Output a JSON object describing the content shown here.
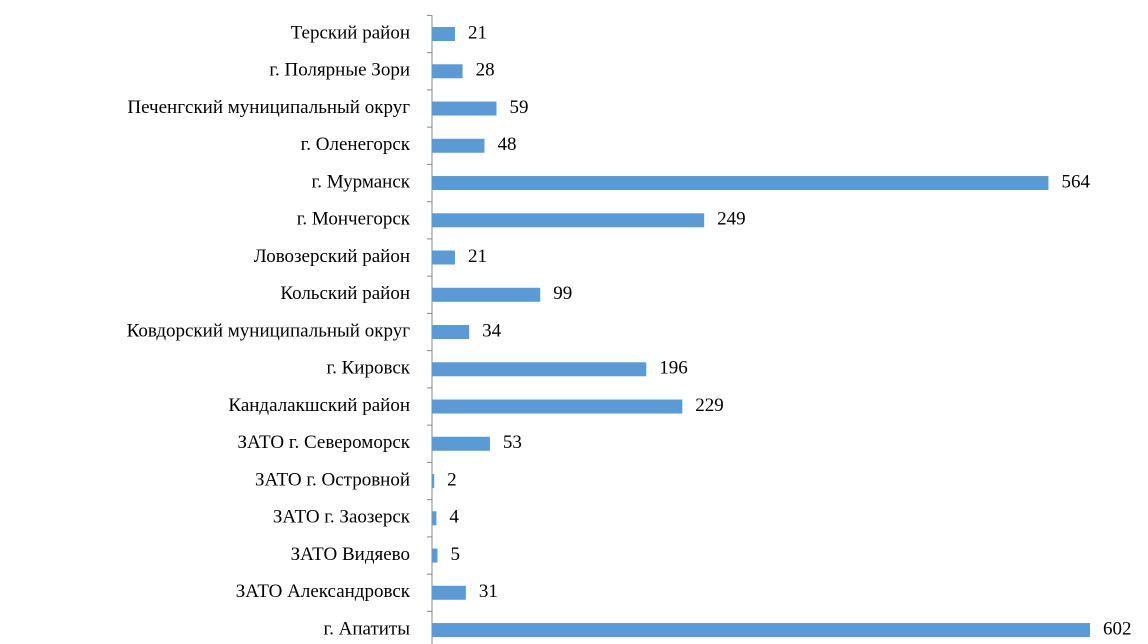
{
  "chart_data": {
    "type": "bar",
    "orientation": "horizontal",
    "categories": [
      "Терский район",
      "г. Полярные Зори",
      "Печенгский муниципальный округ",
      "г. Оленегорск",
      "г. Мурманск",
      "г. Мончегорск",
      "Ловозерский район",
      "Кольский район",
      "Ковдорский муниципальный округ",
      "г. Кировск",
      "Кандалакшский район",
      "ЗАТО г. Североморск",
      "ЗАТО г. Островной",
      "ЗАТО г. Заозерск",
      "ЗАТО Видяево",
      "ЗАТО Александровск",
      "г. Апатиты"
    ],
    "values": [
      21,
      28,
      59,
      48,
      564,
      249,
      21,
      99,
      34,
      196,
      229,
      53,
      2,
      4,
      5,
      31,
      602
    ],
    "color": "#5b9bd5"
  }
}
